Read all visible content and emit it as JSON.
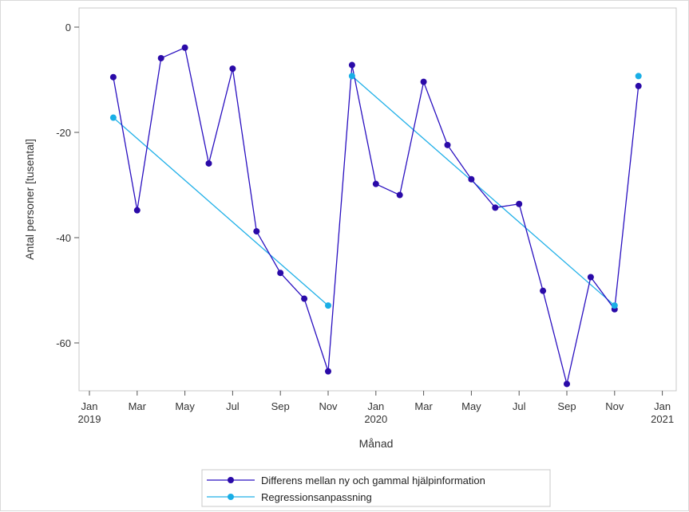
{
  "chart_data": {
    "type": "line",
    "title": "",
    "xlabel": "Månad",
    "ylabel": "Antal personer [tusental]",
    "ylim": [
      -69.5,
      2
    ],
    "yticks": [
      0,
      -20,
      -40,
      -60
    ],
    "y_tick_labels": [
      "0",
      "-20",
      "-40",
      "-60"
    ],
    "x_tick_labels": [
      {
        "month": "Jan",
        "year": "2019"
      },
      {
        "month": "Mar",
        "year": ""
      },
      {
        "month": "May",
        "year": ""
      },
      {
        "month": "Jul",
        "year": ""
      },
      {
        "month": "Sep",
        "year": ""
      },
      {
        "month": "Nov",
        "year": ""
      },
      {
        "month": "Jan",
        "year": "2020"
      },
      {
        "month": "Mar",
        "year": ""
      },
      {
        "month": "May",
        "year": ""
      },
      {
        "month": "Jul",
        "year": ""
      },
      {
        "month": "Sep",
        "year": ""
      },
      {
        "month": "Nov",
        "year": ""
      },
      {
        "month": "Jan",
        "year": "2021"
      }
    ],
    "series": [
      {
        "name": "Differens mellan ny och gammal hjälpinformation",
        "color": "#2a10c0",
        "marker_color": "#2a0aa8",
        "points": [
          {
            "x": "2019-02",
            "y": -9.5
          },
          {
            "x": "2019-03",
            "y": -34.8
          },
          {
            "x": "2019-04",
            "y": -5.9
          },
          {
            "x": "2019-05",
            "y": -3.9
          },
          {
            "x": "2019-06",
            "y": -25.9
          },
          {
            "x": "2019-07",
            "y": -7.9
          },
          {
            "x": "2019-08",
            "y": -38.8
          },
          {
            "x": "2019-09",
            "y": -46.7
          },
          {
            "x": "2019-10",
            "y": -51.6
          },
          {
            "x": "2019-11",
            "y": -65.4
          },
          {
            "x": "2019-12",
            "y": -7.2
          },
          {
            "x": "2020-01",
            "y": -29.8
          },
          {
            "x": "2020-02",
            "y": -31.9
          },
          {
            "x": "2020-03",
            "y": -10.4
          },
          {
            "x": "2020-04",
            "y": -22.4
          },
          {
            "x": "2020-05",
            "y": -28.9
          },
          {
            "x": "2020-06",
            "y": -34.3
          },
          {
            "x": "2020-07",
            "y": -33.6
          },
          {
            "x": "2020-08",
            "y": -50.1
          },
          {
            "x": "2020-09",
            "y": -67.8
          },
          {
            "x": "2020-10",
            "y": -47.5
          },
          {
            "x": "2020-11",
            "y": -53.6
          },
          {
            "x": "2020-12",
            "y": -11.2
          }
        ]
      },
      {
        "name": "Regressionsanpassning",
        "color": "#20b0e8",
        "marker_color": "#19aee6",
        "segments": [
          [
            {
              "x": "2019-02",
              "y": -17.2
            },
            {
              "x": "2019-11",
              "y": -52.9
            }
          ],
          [
            {
              "x": "2019-12",
              "y": -9.3
            },
            {
              "x": "2020-11",
              "y": -52.9
            }
          ],
          [
            {
              "x": "2020-12",
              "y": -9.3
            }
          ]
        ],
        "marker_points": [
          {
            "x": "2019-02",
            "y": -17.2
          },
          {
            "x": "2019-11",
            "y": -52.9
          },
          {
            "x": "2019-12",
            "y": -9.3
          },
          {
            "x": "2020-11",
            "y": -52.9
          },
          {
            "x": "2020-12",
            "y": -9.3
          }
        ]
      }
    ],
    "grid": false,
    "legend_position": "bottom-center"
  }
}
